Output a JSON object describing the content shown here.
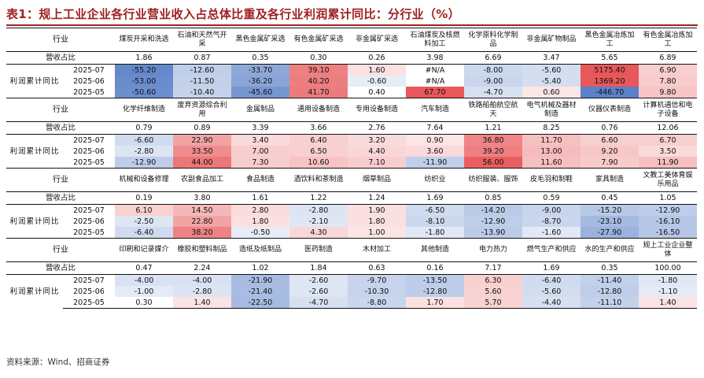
{
  "title": "表1：规上工业企业各行业营业收入占总体比重及各行业利润累计同比：分行业（%）",
  "source": "资料来源：Wind、招商证券",
  "labels": {
    "industry": "行业",
    "weight": "营收占比",
    "profit": "利润累计同比"
  },
  "months": [
    "2025-07",
    "2025-06",
    "2025-05"
  ],
  "colors": {
    "positive": "#e8585a",
    "negative": "#5b82c8",
    "na": "#ffffff"
  },
  "sections": [
    {
      "industries": [
        "煤炭开采和洗选",
        "石油和天然气开采",
        "黑色金属矿采选",
        "有色金属矿采选",
        "非金属矿采选",
        "石油煤炭及核燃料加工",
        "化学原料化学制品",
        "非金属矿物制品",
        "黑色金属冶炼加工",
        "有色金属冶炼加工"
      ],
      "weights": [
        "1.86",
        "0.87",
        "0.35",
        "0.30",
        "0.26",
        "3.98",
        "6.69",
        "3.47",
        "5.65",
        "6.89"
      ],
      "profits": [
        [
          "-55.20",
          "-12.60",
          "-33.70",
          "39.10",
          "1.60",
          "#N/A",
          "-8.00",
          "-5.60",
          "5175.40",
          "6.90"
        ],
        [
          "-53.00",
          "-11.50",
          "-36.20",
          "40.20",
          "-0.60",
          "#N/A",
          "-9.00",
          "-5.40",
          "1369.20",
          "7.80"
        ],
        [
          "-50.60",
          "-10.40",
          "-45.60",
          "41.70",
          "0.40",
          "67.70",
          "-4.70",
          "0.60",
          "-446.70",
          "9.80"
        ]
      ]
    },
    {
      "industries": [
        "化学纤维制造",
        "废弃资源综合利用",
        "金属制品",
        "通用设备制造",
        "专用设备制造",
        "汽车制造",
        "铁路船舶航空航天",
        "电气机械及器材制造",
        "仪器仪表制造",
        "计算机通信和电子设备"
      ],
      "weights": [
        "0.79",
        "0.89",
        "3.39",
        "3.66",
        "2.76",
        "7.64",
        "1.21",
        "8.25",
        "0.76",
        "12.06"
      ],
      "profits": [
        [
          "-6.60",
          "22.90",
          "3.40",
          "6.40",
          "3.20",
          "0.90",
          "36.80",
          "11.70",
          "6.60",
          "6.70"
        ],
        [
          "-2.80",
          "33.50",
          "7.00",
          "6.50",
          "4.40",
          "3.60",
          "39.20",
          "13.00",
          "9.20",
          "3.50"
        ],
        [
          "-12.90",
          "44.00",
          "7.30",
          "10.60",
          "7.10",
          "-11.90",
          "56.00",
          "11.60",
          "7.90",
          "11.90"
        ]
      ]
    },
    {
      "industries": [
        "机械和设备修理",
        "农副食品加工",
        "食品制造",
        "酒饮料和茶制造",
        "烟草制品",
        "纺织业",
        "纺织服装、服饰",
        "皮毛羽和制鞋",
        "家具制造",
        "文教工美体育娱乐用品"
      ],
      "weights": [
        "0.19",
        "3.80",
        "1.61",
        "1.22",
        "1.24",
        "1.69",
        "0.85",
        "0.59",
        "0.45",
        "1.05"
      ],
      "profits": [
        [
          "6.10",
          "14.50",
          "2.80",
          "-2.80",
          "1.90",
          "-6.50",
          "-14.20",
          "-9.00",
          "-15.20",
          "-12.90"
        ],
        [
          "-2.50",
          "22.80",
          "1.80",
          "-2.10",
          "1.80",
          "-8.10",
          "-12.90",
          "-8.70",
          "-23.10",
          "-16.10"
        ],
        [
          "-6.40",
          "38.20",
          "-0.50",
          "4.30",
          "1.00",
          "-1.80",
          "-13.90",
          "-1.60",
          "-27.90",
          "-16.50"
        ]
      ]
    },
    {
      "industries": [
        "印刷和记录媒介",
        "橡胶和塑料制品",
        "造纸及纸制品",
        "医药制造",
        "木材加工",
        "其他制造",
        "电力热力",
        "燃气生产和供应",
        "水的生产和供应",
        "规上工业企业整体"
      ],
      "weights": [
        "0.47",
        "2.24",
        "1.02",
        "1.84",
        "0.63",
        "0.16",
        "7.17",
        "1.69",
        "0.35",
        "100.00"
      ],
      "profits": [
        [
          "-4.00",
          "-4.00",
          "-21.90",
          "-2.60",
          "-9.70",
          "-13.50",
          "6.30",
          "-6.40",
          "-11.40",
          "-1.80"
        ],
        [
          "-1.00",
          "-2.80",
          "-21.40",
          "-2.60",
          "-10.30",
          "-12.80",
          "5.60",
          "-5.60",
          "-12.80",
          "-1.10"
        ],
        [
          "0.30",
          "1.40",
          "-22.50",
          "-4.70",
          "-8.80",
          "1.70",
          "5.70",
          "-4.40",
          "-11.10",
          "1.40"
        ]
      ]
    }
  ]
}
